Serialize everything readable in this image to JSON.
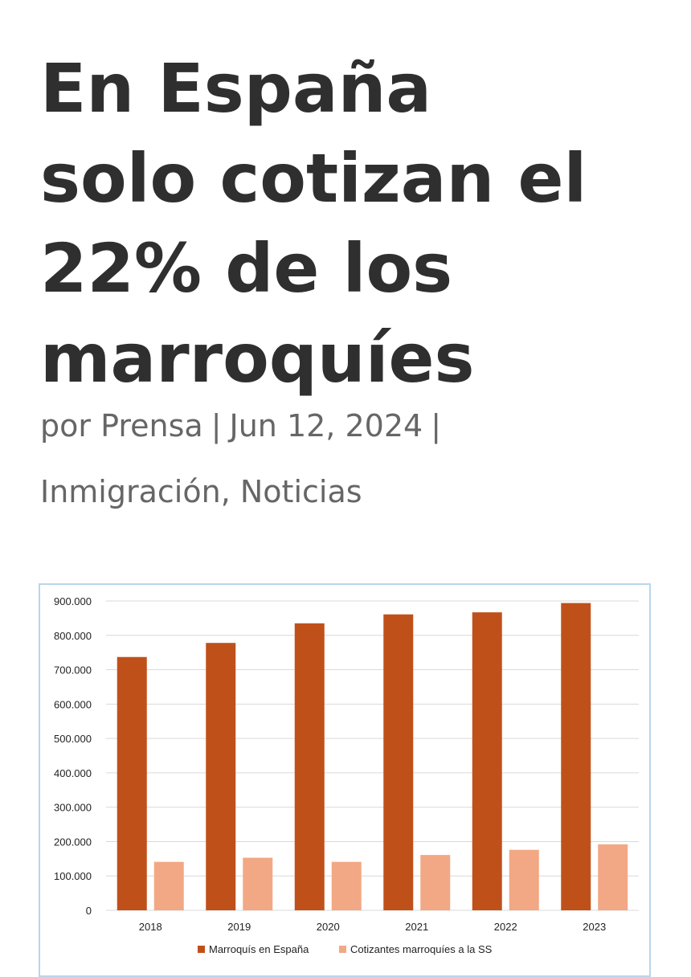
{
  "article": {
    "title_lines": [
      "En España",
      "solo cotizan el",
      "22% de los",
      "marroquíes"
    ],
    "meta": {
      "prefix": "por",
      "author": "Prensa",
      "separator": "|",
      "date": "Jun 12, 2024",
      "trailing_separator": "|"
    },
    "categories": {
      "first": "Inmigración",
      "joiner": ",",
      "second": "Noticias"
    }
  },
  "colors": {
    "series_1": "#c0501a",
    "series_2": "#f2a884",
    "grid": "#d9d9d9",
    "frame": "#b9d6ea"
  },
  "chart_data": {
    "type": "bar",
    "categories": [
      "2018",
      "2019",
      "2020",
      "2021",
      "2022",
      "2023"
    ],
    "series": [
      {
        "name": "Marroquís en España",
        "values": [
          737000,
          778000,
          835000,
          861000,
          867000,
          894000
        ]
      },
      {
        "name": "Cotizantes marroquíes a la SS",
        "values": [
          141000,
          153000,
          141000,
          161000,
          176000,
          192000
        ]
      }
    ],
    "ylim": [
      0,
      900000
    ],
    "yticks": [
      0,
      100000,
      200000,
      300000,
      400000,
      500000,
      600000,
      700000,
      800000,
      900000
    ],
    "ytick_labels": [
      "0",
      "100.000",
      "200.000",
      "300.000",
      "400.000",
      "500.000",
      "600.000",
      "700.000",
      "800.000",
      "900.000"
    ],
    "grid": true,
    "legend_position": "bottom"
  }
}
